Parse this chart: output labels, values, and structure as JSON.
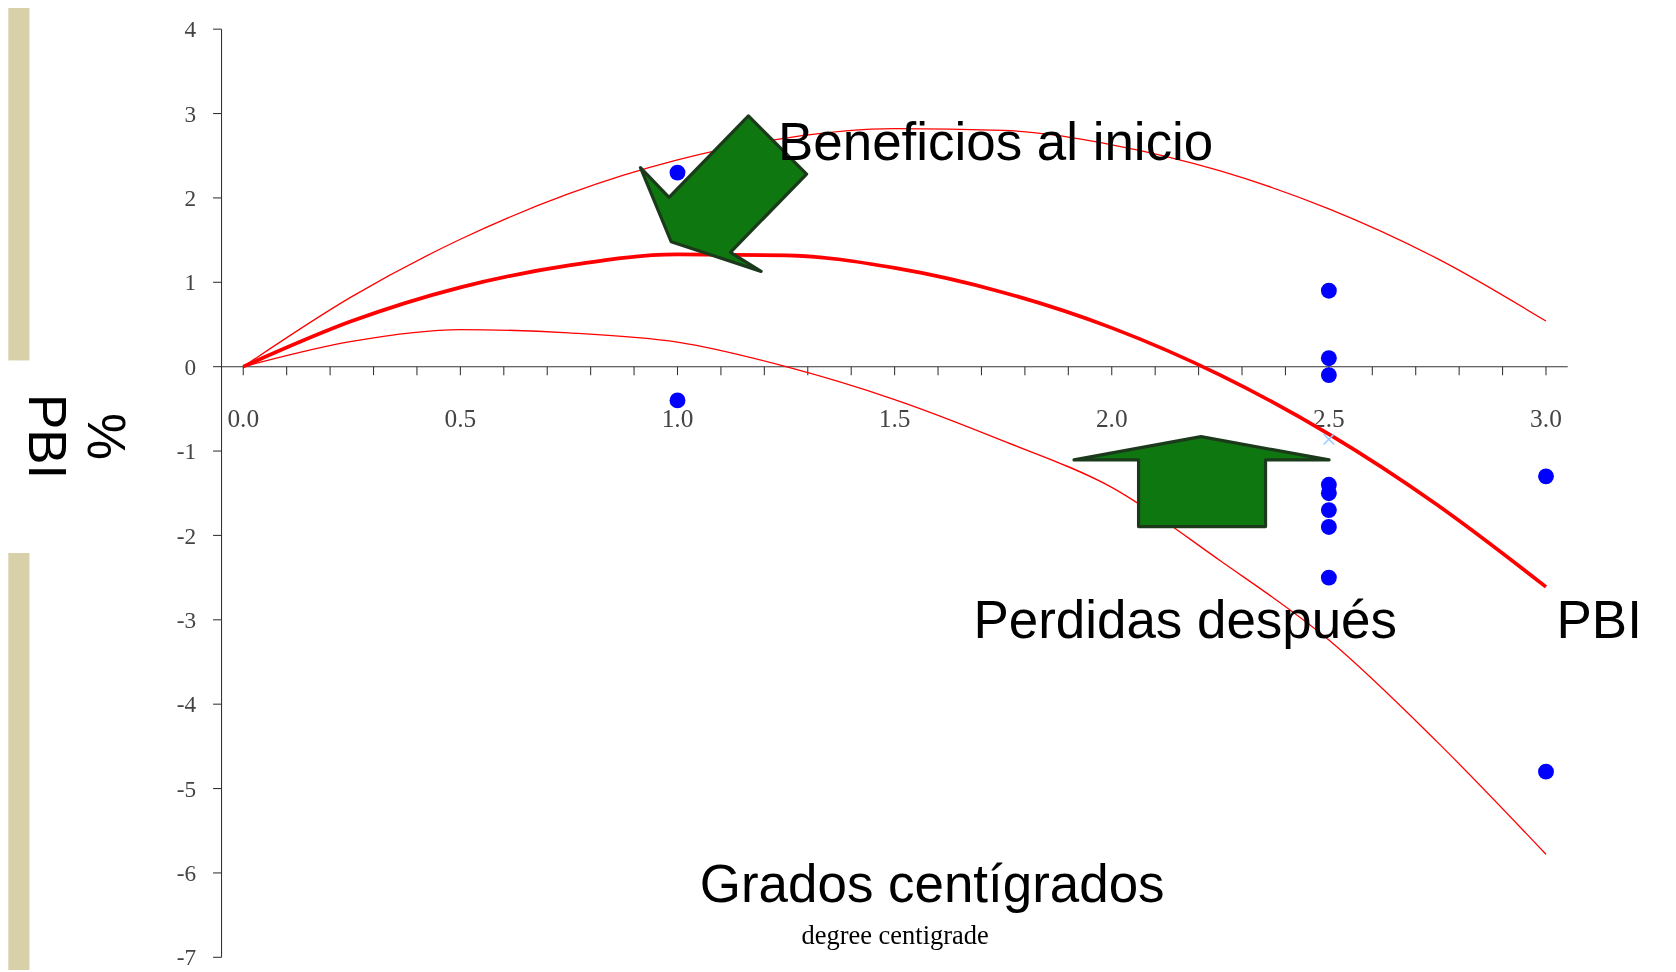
{
  "chart_data": {
    "type": "line",
    "xlabel": "Grados centígrados",
    "ylabel": "% PBI",
    "annotations": [
      {
        "text": "Beneficios al inicio",
        "x": 1.0,
        "y": 1.33
      },
      "Perdidas después",
      "degree centigrade"
    ],
    "xlim": [
      -0.05,
      3.05
    ],
    "ylim": [
      -7,
      4
    ],
    "xticks": [
      {
        "value": 0,
        "label": "0.0"
      },
      {
        "value": 0.1,
        "label": null
      },
      {
        "value": 0.2,
        "label": null
      },
      {
        "value": 0.3,
        "label": null
      },
      {
        "value": 0.4,
        "label": null
      },
      {
        "value": 0.5,
        "label": "0.5"
      },
      {
        "value": 0.6,
        "label": null
      },
      {
        "value": 0.7,
        "label": null
      },
      {
        "value": 0.8,
        "label": null
      },
      {
        "value": 0.9,
        "label": null
      },
      {
        "value": 1,
        "label": "1.0"
      },
      {
        "value": 1.1,
        "label": null
      },
      {
        "value": 1.2,
        "label": null
      },
      {
        "value": 1.3,
        "label": null
      },
      {
        "value": 1.4,
        "label": null
      },
      {
        "value": 1.5,
        "label": "1.5"
      },
      {
        "value": 1.6,
        "label": null
      },
      {
        "value": 1.7,
        "label": null
      },
      {
        "value": 1.8,
        "label": null
      },
      {
        "value": 1.9,
        "label": null
      },
      {
        "value": 2,
        "label": "2.0"
      },
      {
        "value": 2.1,
        "label": null
      },
      {
        "value": 2.2,
        "label": null
      },
      {
        "value": 2.3,
        "label": null
      },
      {
        "value": 2.4,
        "label": null
      },
      {
        "value": 2.5,
        "label": "2.5"
      },
      {
        "value": 2.6,
        "label": null
      },
      {
        "value": 2.7,
        "label": null
      },
      {
        "value": 2.8,
        "label": null
      },
      {
        "value": 2.9,
        "label": null
      },
      {
        "value": 3,
        "label": "3.0"
      }
    ],
    "yticks": [
      -7,
      -6,
      -5,
      -4,
      -3,
      -2,
      -1,
      0,
      1,
      2,
      3,
      4
    ],
    "grid": false,
    "series": [
      {
        "name": "PBI",
        "color": "#ff0000",
        "x": [
          0,
          0.25,
          0.5,
          0.75,
          1,
          1.25,
          1.5,
          1.75,
          2,
          2.25,
          2.5,
          2.75,
          3
        ],
        "values": [
          0,
          0.54,
          0.94,
          1.2,
          1.33,
          1.32,
          1.17,
          0.88,
          0.46,
          -0.1,
          -0.8,
          -1.64,
          -2.61
        ]
      },
      {
        "type": "line",
        "color": "#ff0000",
        "x": [
          0,
          0.25,
          0.5,
          0.75,
          1,
          1.25,
          1.5,
          1.75,
          2,
          2.25,
          2.5,
          2.75,
          3
        ],
        "values": [
          0,
          0.83,
          1.51,
          2.05,
          2.45,
          2.71,
          2.82,
          2.8,
          2.63,
          2.32,
          1.87,
          1.28,
          0.54
        ]
      },
      {
        "type": "line",
        "color": "#ff0000",
        "x": [
          0,
          0.25,
          0.5,
          0.75,
          1,
          1.25,
          1.5,
          1.75,
          2,
          2.25,
          2.5,
          2.75,
          3
        ],
        "values": [
          0,
          0.3,
          0.44,
          0.4,
          0.29,
          0,
          -0.39,
          -0.88,
          -1.43,
          -2.3,
          -3.24,
          -4.45,
          -5.78
        ]
      },
      {
        "type": "scatter",
        "marker": "circle",
        "color": "#0000ff",
        "x": [
          1,
          1,
          2.5,
          2.5,
          2.5,
          2.5,
          2.5,
          2.5,
          2.5,
          2.5,
          3,
          3
        ],
        "values": [
          2.3,
          -0.4,
          0.9,
          0.1,
          -0.1,
          -1.4,
          -1.5,
          -1.7,
          -1.9,
          -2.5,
          -1.3,
          -4.8
        ]
      },
      {
        "type": "scatter",
        "marker": "cross",
        "color": "#99ccff",
        "x": [
          2.5
        ],
        "values": [
          -0.86
        ]
      }
    ]
  }
}
